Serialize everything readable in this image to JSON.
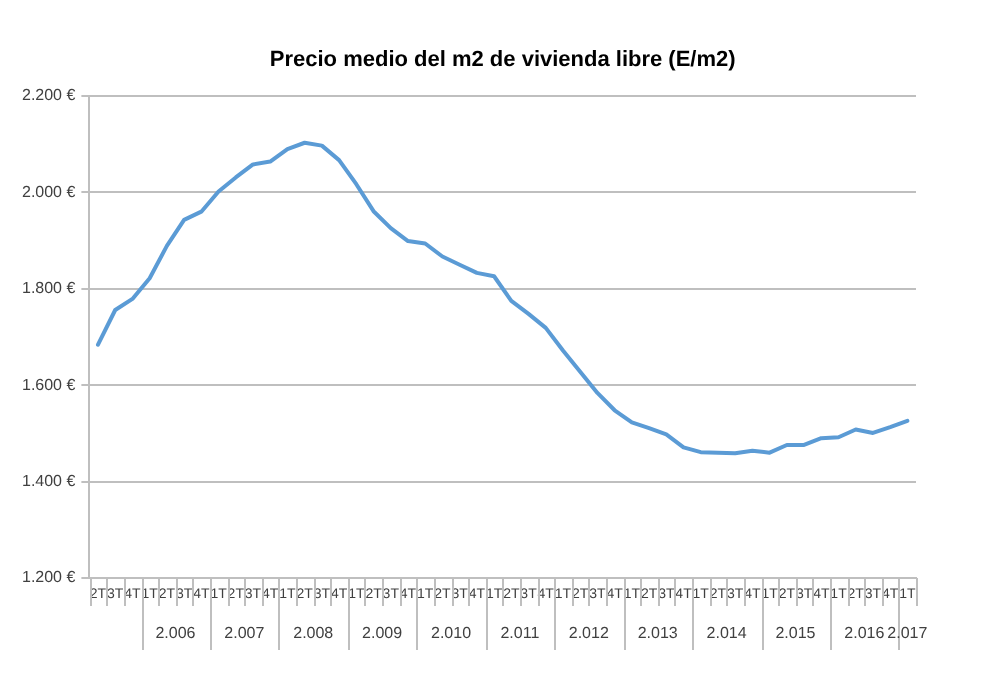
{
  "chart_data": {
    "type": "line",
    "title": "Precio medio del m2 de vivienda libre (E/m2)",
    "categories": [
      "2T",
      "3T",
      "4T",
      "1T",
      "2T",
      "3T",
      "4T",
      "1T",
      "2T",
      "3T",
      "4T",
      "1T",
      "2T",
      "3T",
      "4T",
      "1T",
      "2T",
      "3T",
      "4T",
      "1T",
      "2T",
      "3T",
      "4T",
      "1T",
      "2T",
      "3T",
      "4T",
      "1T",
      "2T",
      "3T",
      "4T",
      "1T",
      "2T",
      "3T",
      "4T",
      "1T",
      "2T",
      "3T",
      "4T",
      "1T",
      "2T",
      "3T",
      "4T",
      "1T",
      "2T",
      "3T",
      "4T",
      "1T"
    ],
    "series": [
      {
        "color": "#5b9bd5",
        "values": [
          1684,
          1756,
          1779,
          1822,
          1889,
          1943,
          1960,
          2002,
          2031,
          2058,
          2064,
          2090,
          2103,
          2097,
          2067,
          2017,
          1961,
          1926,
          1899,
          1894,
          1867,
          1850,
          1833,
          1826,
          1775,
          1748,
          1719,
          1672,
          1628,
          1584,
          1548,
          1523,
          1511,
          1498,
          1471,
          1461,
          1460,
          1459,
          1464,
          1460,
          1476,
          1476,
          1490,
          1492,
          1508,
          1501,
          1513,
          1526
        ]
      }
    ],
    "ylim": [
      1200,
      2200
    ],
    "yticks": [
      {
        "value": 1200,
        "label": "1.200 €"
      },
      {
        "value": 1400,
        "label": "1.400 €"
      },
      {
        "value": 1600,
        "label": "1.600 €"
      },
      {
        "value": 1800,
        "label": "1.800 €"
      },
      {
        "value": 2000,
        "label": "2.000 €"
      },
      {
        "value": 2200,
        "label": "2.200 €"
      }
    ],
    "grid": "y",
    "legend": false,
    "marker": "none",
    "line_style": "solid",
    "annotations": [
      "2.006",
      "2.007",
      "2.008",
      "2.009",
      "2.010",
      "2.011",
      "2.012",
      "2.013",
      "2.014",
      "2.015",
      "2.016",
      "2.017"
    ]
  }
}
